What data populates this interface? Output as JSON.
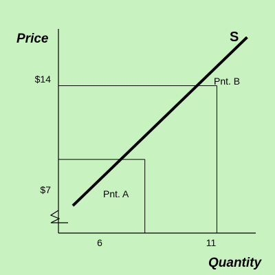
{
  "chart_data": {
    "type": "line",
    "xlabel": "Quantity",
    "ylabel": "Price",
    "xlim": [
      0,
      13.7
    ],
    "ylim": [
      0,
      19.4
    ],
    "grid": false,
    "x_ticks": [
      {
        "value": 6,
        "label": "6"
      },
      {
        "value": 11,
        "label": "11"
      }
    ],
    "y_ticks": [
      {
        "value": 7,
        "label": "$7"
      },
      {
        "value": 14,
        "label": "$14"
      }
    ],
    "series": [
      {
        "name": "S",
        "x": [
          1.0,
          13.1
        ],
        "y": [
          2.6,
          18.6
        ]
      }
    ],
    "points": [
      {
        "label": "Pnt. A",
        "x": 6,
        "y": 7
      },
      {
        "label": "Pnt. B",
        "x": 11,
        "y": 14
      }
    ],
    "axis_break": true,
    "colors": {
      "background": "#c8f2c0",
      "line": "#000000"
    }
  }
}
